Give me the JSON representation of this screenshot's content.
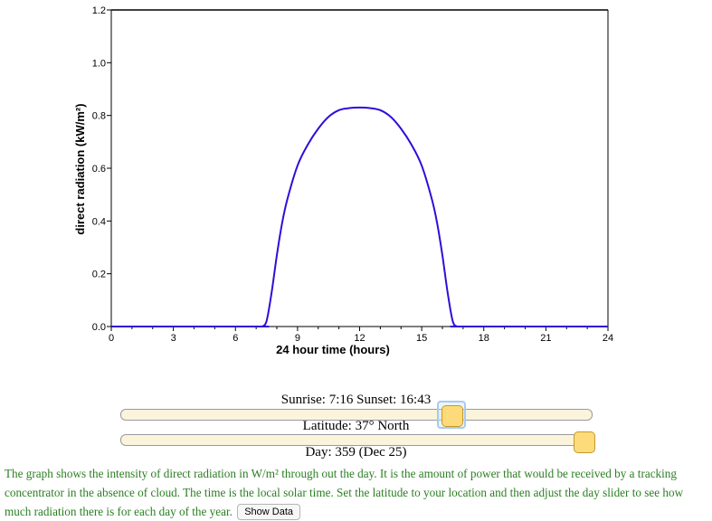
{
  "chart_data": {
    "type": "line",
    "xlabel": "24 hour time (hours)",
    "ylabel": "direct radiation (kW/m²)",
    "xlim": [
      0,
      24
    ],
    "ylim": [
      0,
      1.2
    ],
    "x_tick_labels": [
      "0",
      "3",
      "6",
      "9",
      "12",
      "15",
      "18",
      "21",
      "24"
    ],
    "y_tick_labels": [
      "0.0",
      "0.2",
      "0.4",
      "0.6",
      "0.8",
      "1.0",
      "1.2"
    ],
    "grid": false,
    "series": [
      {
        "color": "#2e0ed8",
        "x": [
          0,
          7.0,
          7.27,
          7.5,
          7.75,
          8.0,
          8.25,
          8.5,
          9.0,
          9.5,
          10.0,
          10.5,
          11.0,
          11.5,
          12.0,
          12.5,
          13.0,
          13.5,
          14.0,
          14.5,
          15.0,
          15.5,
          15.75,
          16.0,
          16.25,
          16.5,
          16.72,
          17.0,
          24
        ],
        "y": [
          0,
          0,
          0,
          0.02,
          0.13,
          0.27,
          0.39,
          0.48,
          0.61,
          0.69,
          0.75,
          0.795,
          0.82,
          0.828,
          0.83,
          0.828,
          0.82,
          0.795,
          0.75,
          0.69,
          0.61,
          0.48,
          0.39,
          0.27,
          0.13,
          0.02,
          0,
          0,
          0
        ]
      }
    ]
  },
  "controls": {
    "sunrise_text": "Sunrise: 7:16 Sunset: 16:43",
    "latitude_text": "Latitude: 37° North",
    "day_text": "Day: 359 (Dec 25)",
    "latitude_value_deg": 37,
    "day_value": 359
  },
  "description": "The graph shows the intensity of direct radiation in W/m² through out the day. It is the amount of power that would be received by a tracking concentrator in the absence of cloud. The time is the local solar time. Set the latitude to your location and then adjust the day slider to see how much radiation there is for each day of the year.",
  "show_data_label": "Show Data"
}
